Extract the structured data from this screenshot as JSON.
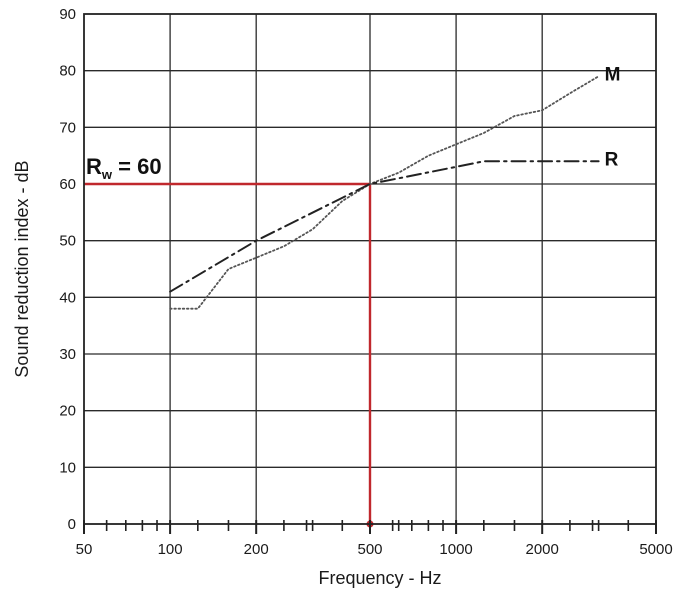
{
  "chart_data": {
    "type": "line",
    "xscale": "log",
    "xlim": [
      50,
      5000
    ],
    "ylim": [
      0,
      90
    ],
    "grid": true,
    "xlabel": "Frequency - Hz",
    "ylabel": "Sound reduction index - dB",
    "xticks": [
      50,
      100,
      200,
      500,
      1000,
      2000,
      5000
    ],
    "xtick_labels": [
      "50",
      "100",
      "200",
      "500",
      "1000",
      "2000",
      "5000"
    ],
    "yticks": [
      0,
      10,
      20,
      30,
      40,
      50,
      60,
      70,
      80,
      90
    ],
    "ytick_labels": [
      "0",
      "10",
      "20",
      "30",
      "40",
      "50",
      "60",
      "70",
      "80",
      "90"
    ],
    "series": [
      {
        "name": "M",
        "style": "dotted",
        "color": "#555555",
        "x": [
          100,
          125,
          160,
          200,
          250,
          315,
          400,
          500,
          630,
          800,
          1000,
          1250,
          1600,
          2000,
          2500,
          3150
        ],
        "y": [
          38,
          38,
          45,
          47,
          49,
          52,
          57,
          60,
          62,
          65,
          67,
          69,
          72,
          73,
          76,
          79
        ]
      },
      {
        "name": "R",
        "style": "dash-dot",
        "color": "#222222",
        "x": [
          100,
          200,
          500,
          1250,
          3150
        ],
        "y": [
          41,
          50,
          60,
          64,
          64
        ]
      }
    ],
    "reference": {
      "label_main": "R",
      "label_sub": "w",
      "label_rest": " = 60",
      "x": 500,
      "y": 60,
      "color": "#c0282d"
    }
  }
}
